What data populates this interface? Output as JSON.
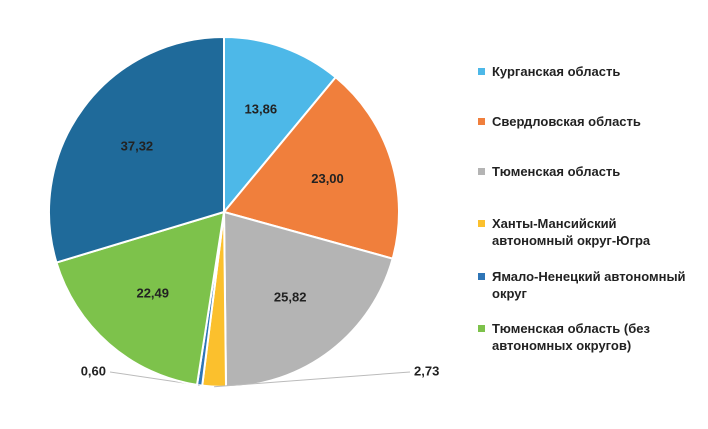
{
  "chart_data": {
    "type": "pie",
    "categories": [
      "Курганская область",
      "Свердловская область",
      "Тюменская область",
      "Ханты-Мансийский автономный округ-Югра",
      "Ямало-Ненецкий автономный округ",
      "Тюменская область (без автономных округов)",
      null
    ],
    "values": [
      13.86,
      23.0,
      25.82,
      2.73,
      0.6,
      22.49,
      37.32
    ],
    "value_labels": [
      "13,86",
      "23,00",
      "25,82",
      "2,73",
      "0,60",
      "22,49",
      "37,32"
    ],
    "colors": [
      "#4db8e8",
      "#f07f3c",
      "#b4b4b4",
      "#fbc02d",
      "#2e75b6",
      "#7dc24b",
      "#1f6a9a"
    ],
    "legend": "right"
  }
}
